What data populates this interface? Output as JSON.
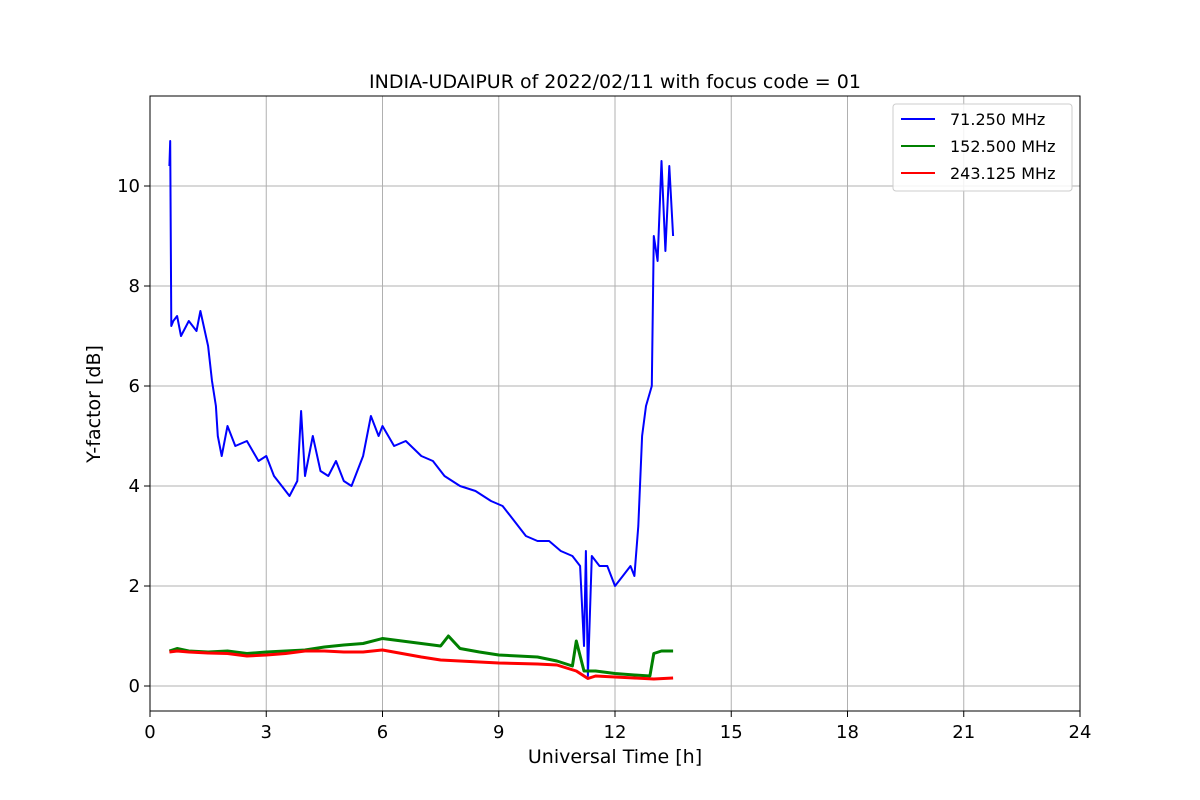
{
  "chart_data": {
    "type": "line",
    "title": "INDIA-UDAIPUR of 2022/02/11 with focus code = 01",
    "xlabel": "Universal Time [h]",
    "ylabel": "Y-factor [dB]",
    "xlim": [
      0,
      24
    ],
    "ylim": [
      -0.5,
      11.8
    ],
    "xticks": [
      0,
      3,
      6,
      9,
      12,
      15,
      18,
      21,
      24
    ],
    "yticks": [
      0,
      2,
      4,
      6,
      8,
      10
    ],
    "grid": true,
    "legend_position": "top-right",
    "series": [
      {
        "name": "71.250 MHz",
        "color": "#0000ff",
        "x": [
          0.5,
          0.52,
          0.55,
          0.6,
          0.7,
          0.8,
          1.0,
          1.2,
          1.3,
          1.5,
          1.6,
          1.7,
          1.75,
          1.85,
          2.0,
          2.2,
          2.5,
          2.8,
          3.0,
          3.2,
          3.4,
          3.6,
          3.8,
          3.9,
          4.0,
          4.2,
          4.4,
          4.6,
          4.8,
          5.0,
          5.2,
          5.5,
          5.7,
          5.9,
          6.0,
          6.3,
          6.6,
          7.0,
          7.3,
          7.6,
          8.0,
          8.4,
          8.8,
          9.1,
          9.4,
          9.7,
          10.0,
          10.3,
          10.6,
          10.9,
          11.1,
          11.2,
          11.25,
          11.3,
          11.4,
          11.6,
          11.8,
          12.0,
          12.2,
          12.4,
          12.5,
          12.6,
          12.7,
          12.8,
          12.95,
          13.0,
          13.1,
          13.2,
          13.3,
          13.4,
          13.5
        ],
        "y": [
          10.4,
          10.9,
          7.2,
          7.3,
          7.4,
          7.0,
          7.3,
          7.1,
          7.5,
          6.8,
          6.1,
          5.6,
          5.0,
          4.6,
          5.2,
          4.8,
          4.9,
          4.5,
          4.6,
          4.2,
          4.0,
          3.8,
          4.1,
          5.5,
          4.2,
          5.0,
          4.3,
          4.2,
          4.5,
          4.1,
          4.0,
          4.6,
          5.4,
          5.0,
          5.2,
          4.8,
          4.9,
          4.6,
          4.5,
          4.2,
          4.0,
          3.9,
          3.7,
          3.6,
          3.3,
          3.0,
          2.9,
          2.9,
          2.7,
          2.6,
          2.4,
          0.8,
          2.7,
          0.2,
          2.6,
          2.4,
          2.4,
          2.0,
          2.2,
          2.4,
          2.2,
          3.2,
          5.0,
          5.6,
          6.0,
          9.0,
          8.5,
          10.5,
          8.7,
          10.4,
          9.0
        ]
      },
      {
        "name": "152.500 MHz",
        "color": "#008000",
        "x": [
          0.5,
          0.7,
          1.0,
          1.5,
          2.0,
          2.5,
          3.0,
          3.5,
          4.0,
          4.5,
          5.0,
          5.5,
          6.0,
          6.5,
          7.0,
          7.5,
          7.7,
          8.0,
          8.5,
          9.0,
          9.5,
          10.0,
          10.5,
          10.9,
          11.0,
          11.2,
          11.5,
          12.0,
          12.5,
          12.9,
          13.0,
          13.2,
          13.5
        ],
        "y": [
          0.7,
          0.75,
          0.7,
          0.68,
          0.7,
          0.65,
          0.68,
          0.7,
          0.72,
          0.78,
          0.82,
          0.85,
          0.95,
          0.9,
          0.85,
          0.8,
          1.0,
          0.75,
          0.68,
          0.62,
          0.6,
          0.58,
          0.5,
          0.4,
          0.9,
          0.3,
          0.3,
          0.25,
          0.22,
          0.2,
          0.65,
          0.7,
          0.7
        ]
      },
      {
        "name": "243.125 MHz",
        "color": "#ff0000",
        "x": [
          0.5,
          0.7,
          1.0,
          1.5,
          2.0,
          2.5,
          3.0,
          3.5,
          4.0,
          4.5,
          5.0,
          5.5,
          6.0,
          6.5,
          7.0,
          7.5,
          8.0,
          8.5,
          9.0,
          9.5,
          10.0,
          10.5,
          11.0,
          11.3,
          11.5,
          12.0,
          12.5,
          13.0,
          13.5
        ],
        "y": [
          0.68,
          0.7,
          0.68,
          0.66,
          0.65,
          0.6,
          0.62,
          0.65,
          0.7,
          0.7,
          0.68,
          0.68,
          0.72,
          0.65,
          0.58,
          0.52,
          0.5,
          0.48,
          0.46,
          0.45,
          0.44,
          0.42,
          0.3,
          0.15,
          0.2,
          0.18,
          0.16,
          0.14,
          0.16
        ]
      }
    ]
  }
}
